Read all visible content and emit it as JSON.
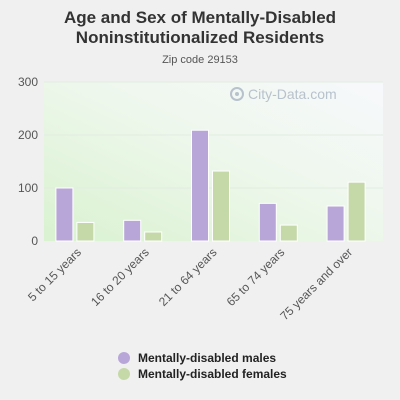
{
  "chart_data": {
    "type": "bar",
    "title": "Age and Sex of Mentally-Disabled Noninstitutionalized Residents",
    "subtitle": "Zip code 29153",
    "categories": [
      "5 to 15 years",
      "16 to 20 years",
      "21 to 64 years",
      "65 to 74 years",
      "75 years and over"
    ],
    "series": [
      {
        "name": "Mentally-disabled males",
        "values": [
          100,
          39,
          209,
          71,
          66
        ],
        "color": "#b9a6d9"
      },
      {
        "name": "Mentally-disabled females",
        "values": [
          35,
          17,
          132,
          30,
          111
        ],
        "color": "#c5d9a8"
      }
    ],
    "y_ticks": [
      0,
      100,
      200,
      300
    ],
    "ylim": [
      0,
      300
    ],
    "grid": true,
    "legend_position": "bottom"
  },
  "watermark": {
    "text": "City-Data.com",
    "icon": "search-icon"
  }
}
